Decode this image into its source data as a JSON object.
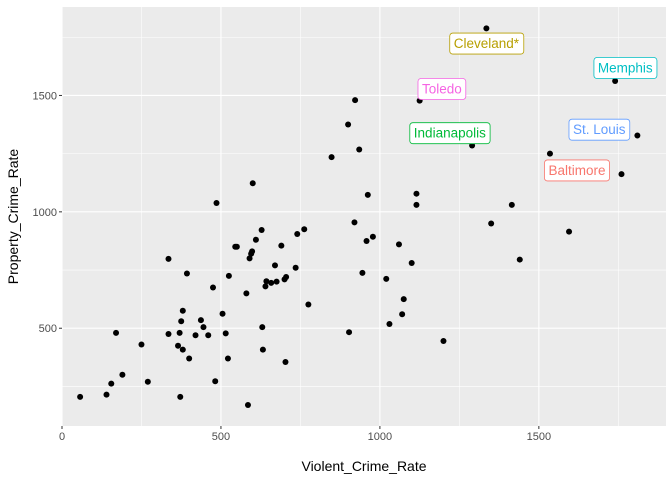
{
  "chart_data": {
    "type": "scatter",
    "title": "",
    "xlabel": "Violent_Crime_Rate",
    "ylabel": "Property_Crime_Rate",
    "xlim": [
      0,
      1900
    ],
    "ylim": [
      80,
      1880
    ],
    "x_ticks": [
      0,
      500,
      1000,
      1500
    ],
    "y_ticks": [
      500,
      1000,
      1500
    ],
    "grid": true,
    "background": "#ebebeb",
    "point_color": "#000000",
    "points": [
      {
        "x": 57,
        "y": 205
      },
      {
        "x": 140,
        "y": 215
      },
      {
        "x": 155,
        "y": 262
      },
      {
        "x": 170,
        "y": 480
      },
      {
        "x": 190,
        "y": 300
      },
      {
        "x": 250,
        "y": 430
      },
      {
        "x": 270,
        "y": 270
      },
      {
        "x": 335,
        "y": 475
      },
      {
        "x": 335,
        "y": 798
      },
      {
        "x": 365,
        "y": 425
      },
      {
        "x": 370,
        "y": 480
      },
      {
        "x": 372,
        "y": 205
      },
      {
        "x": 375,
        "y": 530
      },
      {
        "x": 380,
        "y": 575
      },
      {
        "x": 380,
        "y": 408
      },
      {
        "x": 393,
        "y": 735
      },
      {
        "x": 400,
        "y": 370
      },
      {
        "x": 420,
        "y": 470
      },
      {
        "x": 437,
        "y": 535
      },
      {
        "x": 445,
        "y": 505
      },
      {
        "x": 460,
        "y": 470
      },
      {
        "x": 475,
        "y": 675
      },
      {
        "x": 482,
        "y": 272
      },
      {
        "x": 486,
        "y": 1038
      },
      {
        "x": 505,
        "y": 562
      },
      {
        "x": 515,
        "y": 478
      },
      {
        "x": 522,
        "y": 370
      },
      {
        "x": 525,
        "y": 725
      },
      {
        "x": 545,
        "y": 850
      },
      {
        "x": 550,
        "y": 850
      },
      {
        "x": 580,
        "y": 650
      },
      {
        "x": 585,
        "y": 170
      },
      {
        "x": 590,
        "y": 800
      },
      {
        "x": 595,
        "y": 820
      },
      {
        "x": 598,
        "y": 830
      },
      {
        "x": 600,
        "y": 1123
      },
      {
        "x": 610,
        "y": 880
      },
      {
        "x": 628,
        "y": 922
      },
      {
        "x": 630,
        "y": 505
      },
      {
        "x": 632,
        "y": 408
      },
      {
        "x": 640,
        "y": 680
      },
      {
        "x": 643,
        "y": 702
      },
      {
        "x": 658,
        "y": 695
      },
      {
        "x": 670,
        "y": 770
      },
      {
        "x": 675,
        "y": 700
      },
      {
        "x": 690,
        "y": 855
      },
      {
        "x": 700,
        "y": 710
      },
      {
        "x": 703,
        "y": 355
      },
      {
        "x": 705,
        "y": 720
      },
      {
        "x": 735,
        "y": 760
      },
      {
        "x": 740,
        "y": 905
      },
      {
        "x": 762,
        "y": 925
      },
      {
        "x": 775,
        "y": 602
      },
      {
        "x": 848,
        "y": 1235
      },
      {
        "x": 900,
        "y": 1375
      },
      {
        "x": 903,
        "y": 483
      },
      {
        "x": 920,
        "y": 955
      },
      {
        "x": 922,
        "y": 1480
      },
      {
        "x": 935,
        "y": 1268
      },
      {
        "x": 945,
        "y": 738
      },
      {
        "x": 958,
        "y": 875
      },
      {
        "x": 962,
        "y": 1073
      },
      {
        "x": 978,
        "y": 893
      },
      {
        "x": 1020,
        "y": 712
      },
      {
        "x": 1030,
        "y": 518
      },
      {
        "x": 1060,
        "y": 860
      },
      {
        "x": 1070,
        "y": 560
      },
      {
        "x": 1075,
        "y": 625
      },
      {
        "x": 1100,
        "y": 780
      },
      {
        "x": 1115,
        "y": 1078
      },
      {
        "x": 1115,
        "y": 1030
      },
      {
        "x": 1125,
        "y": 1478
      },
      {
        "x": 1200,
        "y": 445
      },
      {
        "x": 1290,
        "y": 1285
      },
      {
        "x": 1335,
        "y": 1788
      },
      {
        "x": 1350,
        "y": 950
      },
      {
        "x": 1415,
        "y": 1030
      },
      {
        "x": 1440,
        "y": 795
      },
      {
        "x": 1535,
        "y": 1250
      },
      {
        "x": 1595,
        "y": 915
      },
      {
        "x": 1740,
        "y": 1562
      },
      {
        "x": 1760,
        "y": 1162
      },
      {
        "x": 1810,
        "y": 1328
      }
    ],
    "labels": [
      {
        "text": "Cleveland*",
        "x": 1335,
        "y": 1725,
        "color": "#b79f00"
      },
      {
        "text": "Toledo",
        "x": 1195,
        "y": 1530,
        "color": "#f564e3"
      },
      {
        "text": "Memphis",
        "x": 1772,
        "y": 1620,
        "color": "#00bfc4"
      },
      {
        "text": "Indianapolis",
        "x": 1220,
        "y": 1340,
        "color": "#00ba38"
      },
      {
        "text": "St. Louis",
        "x": 1690,
        "y": 1355,
        "color": "#619cff"
      },
      {
        "text": "Baltimore",
        "x": 1620,
        "y": 1180,
        "color": "#f8766d"
      }
    ]
  }
}
